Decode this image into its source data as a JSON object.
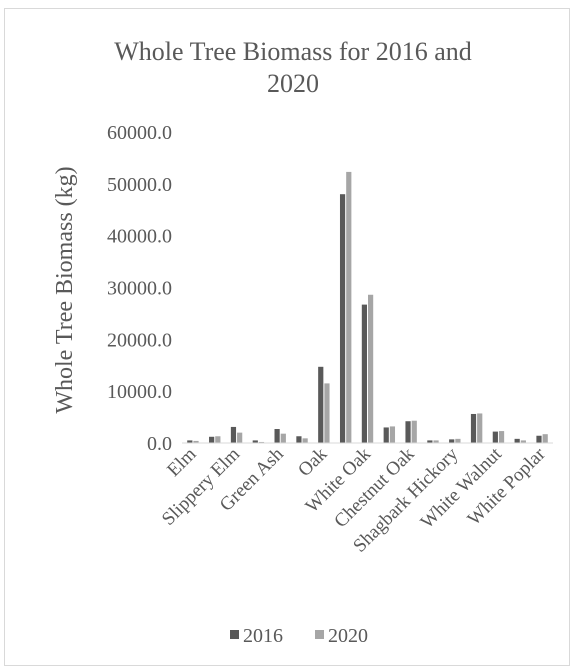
{
  "chart_data": {
    "type": "bar",
    "title": "Whole Tree Biomass for 2016 and 2020",
    "title_lines": [
      "Whole Tree Biomass for 2016 and",
      "2020"
    ],
    "xlabel": "",
    "ylabel": "Whole Tree Biomass (kg)",
    "ylim": [
      0,
      60000
    ],
    "yticks": [
      "0.0",
      "10000.0",
      "20000.0",
      "30000.0",
      "40000.0",
      "50000.0",
      "60000.0"
    ],
    "grid": false,
    "legend_position": "bottom",
    "categories": [
      "Elm",
      "",
      "Slippery Elm",
      "",
      "Green Ash",
      "",
      "Oak",
      "",
      "White Oak",
      "",
      "Chestnut Oak",
      "",
      "Shagbark Hickory",
      "",
      "White Walnut",
      "",
      "White Poplar"
    ],
    "series": [
      {
        "name": "2016",
        "color": "#595959",
        "values": [
          500,
          1200,
          3100,
          500,
          2700,
          1300,
          14700,
          48000,
          26700,
          3000,
          4200,
          500,
          700,
          5600,
          2200,
          800,
          1400
        ]
      },
      {
        "name": "2020",
        "color": "#a6a6a6",
        "values": [
          400,
          1300,
          2000,
          200,
          1800,
          900,
          11500,
          52300,
          28600,
          3200,
          4300,
          500,
          800,
          5700,
          2300,
          500,
          1700
        ]
      }
    ]
  }
}
